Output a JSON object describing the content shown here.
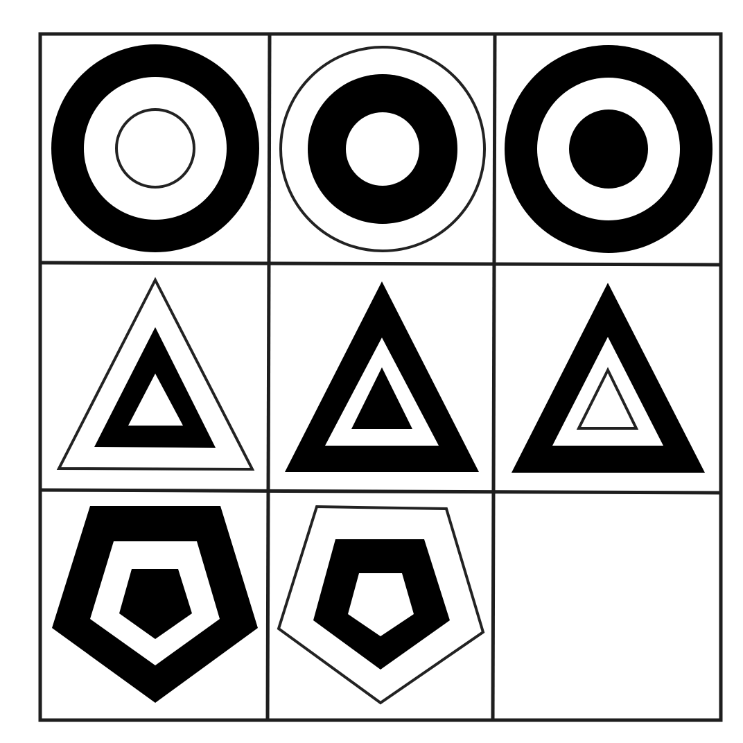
{
  "puzzle": {
    "title": "",
    "rows": [
      {
        "shape": "circle",
        "cells": [
          {
            "pattern": [
              "thick-ring",
              "thin-ring"
            ]
          },
          {
            "pattern": [
              "thin-ring",
              "thick-ring"
            ]
          },
          {
            "pattern": [
              "thick-ring",
              "solid-core"
            ]
          }
        ]
      },
      {
        "shape": "triangle",
        "cells": [
          {
            "pattern": [
              "thin-ring",
              "thick-ring"
            ]
          },
          {
            "pattern": [
              "thick-ring",
              "solid-core"
            ]
          },
          {
            "pattern": [
              "thick-ring",
              "thin-ring"
            ]
          }
        ]
      },
      {
        "shape": "pentagon",
        "cells": [
          {
            "pattern": [
              "thick-ring",
              "solid-core"
            ]
          },
          {
            "pattern": [
              "thin-ring",
              "thick-ring"
            ]
          },
          {
            "pattern": [],
            "missing": true
          }
        ]
      }
    ],
    "colors": {
      "ink": "#000000",
      "paper": "#ffffff",
      "grid": "#1e1e1e"
    }
  }
}
